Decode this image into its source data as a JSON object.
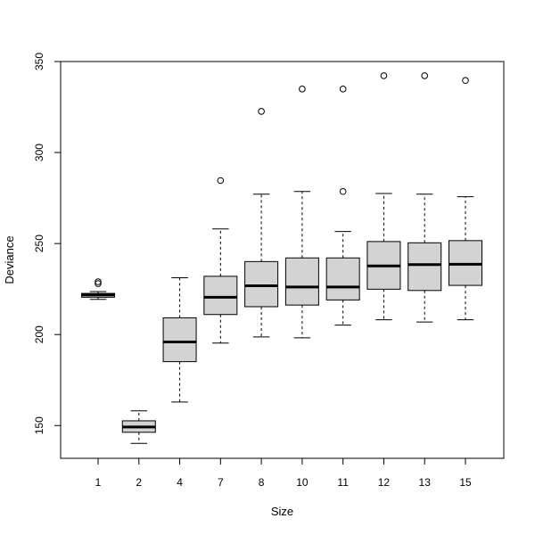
{
  "chart_data": {
    "type": "boxplot",
    "title": "",
    "xlabel": "Size",
    "ylabel": "Deviance",
    "ylim": [
      132,
      350
    ],
    "yticks": [
      150,
      200,
      250,
      300,
      350
    ],
    "box_fill": "#d3d3d3",
    "categories": [
      "1",
      "2",
      "4",
      "7",
      "8",
      "10",
      "11",
      "12",
      "13",
      "15"
    ],
    "boxes": [
      {
        "min": 219.3,
        "q1": 220.5,
        "median": 221.8,
        "q3": 222.6,
        "max": 223.6,
        "outliers": [
          228.0,
          229.0
        ]
      },
      {
        "min": 140.2,
        "q1": 146.3,
        "median": 149.2,
        "q3": 152.6,
        "max": 158.1,
        "outliers": []
      },
      {
        "min": 162.9,
        "q1": 185.1,
        "median": 195.9,
        "q3": 209.2,
        "max": 231.2,
        "outliers": []
      },
      {
        "min": 195.3,
        "q1": 211.0,
        "median": 220.5,
        "q3": 232.0,
        "max": 258.0,
        "outliers": [
          284.6
        ]
      },
      {
        "min": 198.7,
        "q1": 215.3,
        "median": 226.8,
        "q3": 240.1,
        "max": 277.1,
        "outliers": [
          322.6
        ]
      },
      {
        "min": 198.2,
        "q1": 216.2,
        "median": 226.1,
        "q3": 242.1,
        "max": 278.6,
        "outliers": [
          334.9
        ]
      },
      {
        "min": 205.2,
        "q1": 219.0,
        "median": 226.1,
        "q3": 242.1,
        "max": 256.6,
        "outliers": [
          278.6,
          334.9
        ]
      },
      {
        "min": 208.1,
        "q1": 224.9,
        "median": 237.7,
        "q3": 251.1,
        "max": 277.5,
        "outliers": [
          342.2
        ]
      },
      {
        "min": 206.9,
        "q1": 224.2,
        "median": 238.4,
        "q3": 250.4,
        "max": 277.1,
        "outliers": [
          342.2
        ]
      },
      {
        "min": 208.1,
        "q1": 227.0,
        "median": 238.6,
        "q3": 251.6,
        "max": 275.7,
        "outliers": [
          339.6
        ]
      }
    ]
  }
}
